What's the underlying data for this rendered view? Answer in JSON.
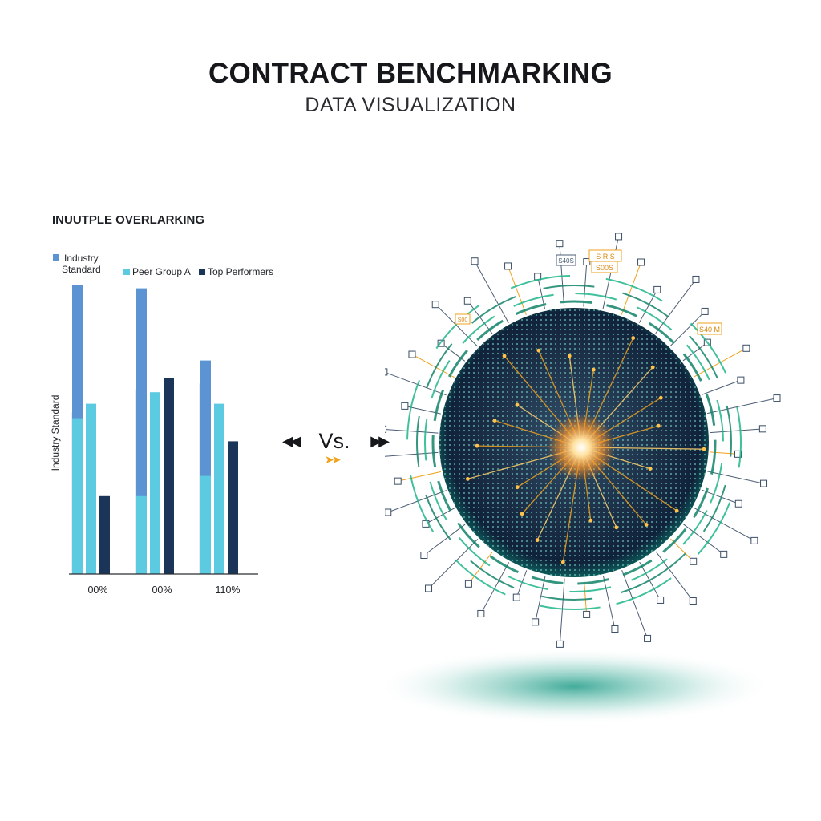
{
  "header": {
    "title": "CONTRACT BENCHMARKING",
    "subtitle": "DATA VISUALIZATION"
  },
  "vs": {
    "label": "Vs.",
    "left_icon": "double-chevron-left-icon",
    "right_icon": "double-chevron-right-icon",
    "accent_icon": "double-chevron-right-icon",
    "accent_color": "#f0a21c"
  },
  "chart_data": {
    "type": "bar",
    "title": "INUUTPLE OVERLARKING",
    "ylabel": "Industry Standard",
    "xlabel": "",
    "categories": [
      "00%",
      "00%",
      "110%"
    ],
    "series": [
      {
        "name": "Industry Standard",
        "color": "#5b93d3",
        "values": [
          100,
          99,
          74
        ]
      },
      {
        "name": "Peer Group A",
        "color": "#5ccae0",
        "values": [
          59,
          63,
          59
        ]
      },
      {
        "name": "Top Performers",
        "color": "#1a3558",
        "values": [
          27,
          68,
          46
        ]
      }
    ],
    "stacked_segments": {
      "Industry Standard": [
        54,
        27,
        34
      ],
      "Peer Group A": [
        36,
        33,
        25
      ]
    },
    "background_values": [
      56,
      64,
      66
    ],
    "ylim": [
      0,
      100
    ],
    "legend": "top-left",
    "grid": false
  },
  "globe": {
    "labels": [
      "S RIS",
      "S00S",
      "S40S",
      "S40 M",
      "S00"
    ],
    "accent_color": "#f0a21c",
    "ring_color": "#1fb58a",
    "core_color": "#1b2f45"
  }
}
